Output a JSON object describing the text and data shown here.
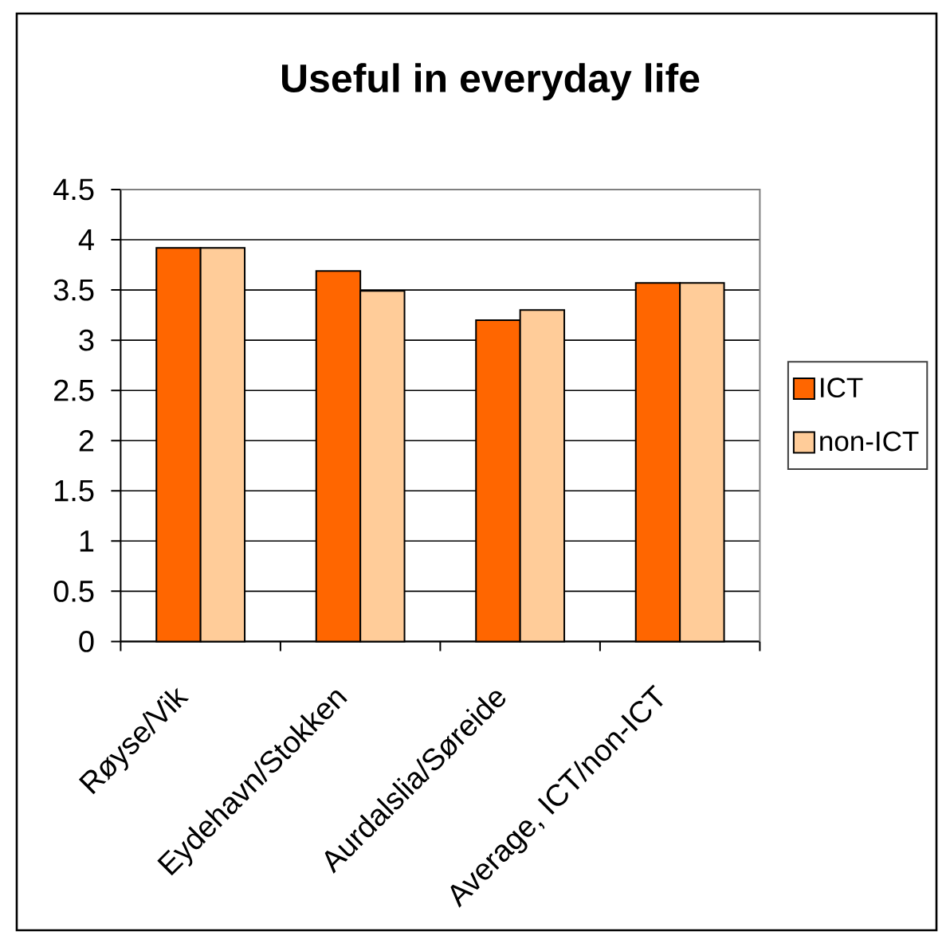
{
  "chart_data": {
    "type": "bar",
    "title": "Useful in everyday life",
    "categories": [
      "Røyse/Vik",
      "Eydehavn/Stokken",
      "Aurdalslia/Søreide",
      "Average, ICT/non-ICT"
    ],
    "series": [
      {
        "name": "ICT",
        "color": "#ff6600",
        "values": [
          3.92,
          3.69,
          3.2,
          3.57
        ]
      },
      {
        "name": "non-ICT",
        "color": "#ffcc99",
        "values": [
          3.92,
          3.49,
          3.3,
          3.57
        ]
      }
    ],
    "ylim": [
      0,
      4.5
    ],
    "yticks": [
      0,
      0.5,
      1,
      1.5,
      2,
      2.5,
      3,
      3.5,
      4,
      4.5
    ],
    "grid": "y",
    "legend": "right"
  }
}
